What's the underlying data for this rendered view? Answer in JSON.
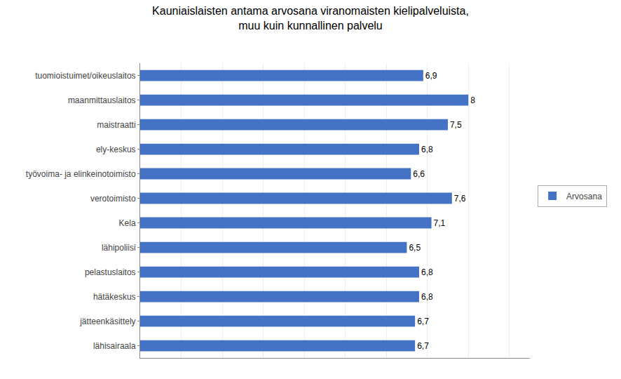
{
  "chart_data": {
    "type": "bar",
    "orientation": "horizontal",
    "title": "Kauniaislaisten antama arvosana viranomaisten kielipalveluista,\nmuu kuin kunnallinen palvelu",
    "categories": [
      "lähisairaala",
      "jätteenkäsittely",
      "hätäkeskus",
      "pelastuslaitos",
      "lähipoliisi",
      "Kela",
      "verotoimisto",
      "työvoima- ja elinkeinotoimisto",
      "ely-keskus",
      "maistraatti",
      "maanmittauslaitos",
      "tuomioistuimet/oikeuslaitos"
    ],
    "series": [
      {
        "name": "Arvosana",
        "color": "#4472C4",
        "values": [
          6.7,
          6.7,
          6.8,
          6.8,
          6.5,
          7.1,
          7.6,
          6.6,
          6.8,
          7.5,
          8.0,
          6.9
        ],
        "value_labels": [
          "6,7",
          "6,7",
          "6,8",
          "6,8",
          "6,5",
          "7,1",
          "7,6",
          "6,6",
          "6,8",
          "7,5",
          "8",
          "6,9"
        ]
      }
    ],
    "xlim": [
      0,
      9.5
    ],
    "xticks": [
      1,
      2,
      3,
      4,
      5,
      6,
      7,
      8,
      9
    ],
    "tick_labels": "y",
    "grid": true,
    "data_labels": true,
    "legend": "right"
  }
}
